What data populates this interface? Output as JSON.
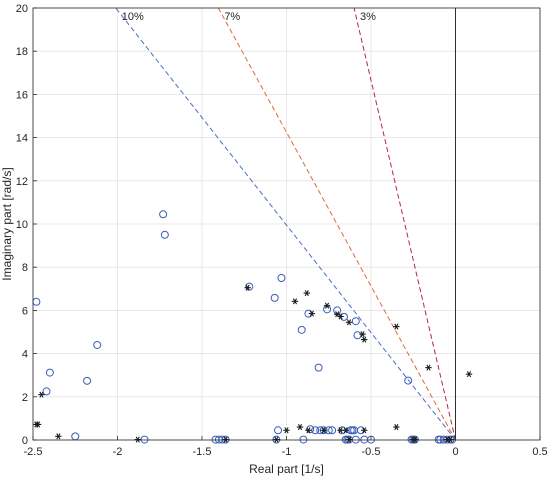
{
  "chart_data": {
    "type": "scatter",
    "xlabel": "Real part [1/s]",
    "ylabel": "Imaginary part [rad/s]",
    "xlim": [
      -2.5,
      0.5
    ],
    "ylim": [
      0,
      20
    ],
    "xticks": [
      -2.5,
      -2,
      -1.5,
      -1,
      -0.5,
      0,
      0.5
    ],
    "xtick_labels": [
      "-2.5",
      "-2",
      "-1.5",
      "-1",
      "-0.5",
      "0",
      "0.5"
    ],
    "yticks": [
      0,
      2,
      4,
      6,
      8,
      10,
      12,
      14,
      16,
      18,
      20
    ],
    "ytick_labels": [
      "0",
      "2",
      "4",
      "6",
      "8",
      "10",
      "12",
      "14",
      "16",
      "18",
      "20"
    ],
    "grid": true,
    "damping_lines": [
      {
        "label": "10%",
        "zeta": 0.1,
        "color": "#4a6fc2"
      },
      {
        "label": "7%",
        "zeta": 0.07,
        "color": "#e0693a"
      },
      {
        "label": "3%",
        "zeta": 0.03,
        "color": "#b5283a"
      }
    ],
    "series": [
      {
        "marker": "circle",
        "color": "#3a5fb8",
        "points": [
          [
            -2.48,
            6.4
          ],
          [
            -2.42,
            2.25
          ],
          [
            -2.4,
            3.12
          ],
          [
            -2.25,
            0.17
          ],
          [
            -2.18,
            2.74
          ],
          [
            -2.12,
            4.4
          ],
          [
            -1.73,
            10.45
          ],
          [
            -1.72,
            9.5
          ],
          [
            -1.84,
            0.02
          ],
          [
            -1.42,
            0.02
          ],
          [
            -1.4,
            0.02
          ],
          [
            -1.38,
            0.02
          ],
          [
            -1.36,
            0.02
          ],
          [
            -1.22,
            7.1
          ],
          [
            -1.07,
            6.58
          ],
          [
            -1.06,
            0.02
          ],
          [
            -1.05,
            0.45
          ],
          [
            -1.03,
            7.5
          ],
          [
            -0.91,
            5.1
          ],
          [
            -0.9,
            0.02
          ],
          [
            -0.87,
            5.85
          ],
          [
            -0.86,
            0.5
          ],
          [
            -0.83,
            0.45
          ],
          [
            -0.81,
            3.35
          ],
          [
            -0.8,
            0.45
          ],
          [
            -0.78,
            0.45
          ],
          [
            -0.76,
            6.05
          ],
          [
            -0.75,
            0.45
          ],
          [
            -0.73,
            0.45
          ],
          [
            -0.7,
            6.0
          ],
          [
            -0.67,
            0.45
          ],
          [
            -0.66,
            5.7
          ],
          [
            -0.65,
            0.02
          ],
          [
            -0.64,
            0.02
          ],
          [
            -0.63,
            0.02
          ],
          [
            -0.62,
            0.45
          ],
          [
            -0.61,
            0.45
          ],
          [
            -0.6,
            0.45
          ],
          [
            -0.59,
            5.5
          ],
          [
            -0.59,
            0.02
          ],
          [
            -0.58,
            4.85
          ],
          [
            -0.56,
            0.45
          ],
          [
            -0.54,
            0.02
          ],
          [
            -0.5,
            0.02
          ],
          [
            -0.28,
            2.75
          ],
          [
            -0.26,
            0.02
          ],
          [
            -0.25,
            0.02
          ],
          [
            -0.24,
            0.02
          ],
          [
            -0.1,
            0.02
          ],
          [
            -0.09,
            0.02
          ],
          [
            -0.07,
            0.02
          ],
          [
            -0.05,
            0.02
          ],
          [
            -0.03,
            0.02
          ],
          [
            -0.02,
            0.02
          ]
        ]
      },
      {
        "marker": "asterisk",
        "color": "#1a1a1a",
        "points": [
          [
            -2.48,
            0.72
          ],
          [
            -2.47,
            0.72
          ],
          [
            -2.45,
            2.1
          ],
          [
            -2.35,
            0.17
          ],
          [
            -1.88,
            0.02
          ],
          [
            -1.36,
            0.02
          ],
          [
            -1.23,
            7.05
          ],
          [
            -1.06,
            0.02
          ],
          [
            -1.0,
            0.45
          ],
          [
            -0.95,
            6.42
          ],
          [
            -0.92,
            0.6
          ],
          [
            -0.88,
            6.8
          ],
          [
            -0.87,
            0.45
          ],
          [
            -0.85,
            5.85
          ],
          [
            -0.78,
            0.45
          ],
          [
            -0.76,
            6.22
          ],
          [
            -0.7,
            5.82
          ],
          [
            -0.68,
            0.45
          ],
          [
            -0.68,
            5.72
          ],
          [
            -0.65,
            0.45
          ],
          [
            -0.63,
            5.45
          ],
          [
            -0.63,
            0.02
          ],
          [
            -0.55,
            4.9
          ],
          [
            -0.54,
            4.65
          ],
          [
            -0.54,
            0.45
          ],
          [
            -0.35,
            5.25
          ],
          [
            -0.35,
            0.6
          ],
          [
            -0.25,
            0.02
          ],
          [
            -0.24,
            0.02
          ],
          [
            -0.16,
            3.35
          ],
          [
            -0.05,
            0.02
          ],
          [
            -0.03,
            0.02
          ],
          [
            0.08,
            3.05
          ]
        ]
      }
    ]
  }
}
